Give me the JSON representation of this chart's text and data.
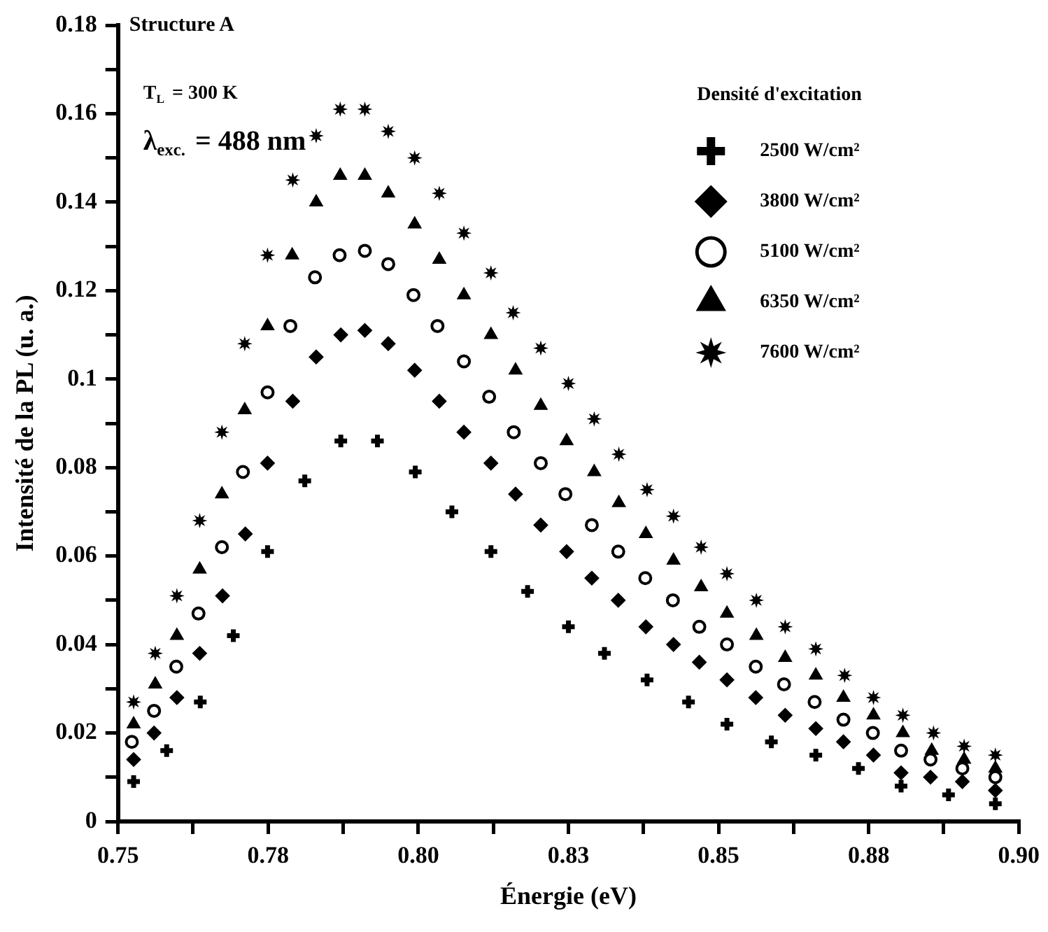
{
  "chart_data": {
    "type": "scatter",
    "xlabel": "Énergie (eV)",
    "ylabel": "Intensité de la PL (u. a.)",
    "legend_title": "Densité d'excitation",
    "legend": "top right",
    "grid": false,
    "annotations": [
      "Structure A",
      "T$_{L}$ = 300 K",
      "λ$_{exc.}$ = 488 nm"
    ],
    "xlim": [
      0.75,
      0.9
    ],
    "xticks": [
      0.75,
      {
        "value": 0.7625,
        "label": null
      },
      {
        "value": 0.775,
        "label": "0.78"
      },
      {
        "value": 0.7875,
        "label": null
      },
      {
        "value": 0.8,
        "label": "0.80"
      },
      {
        "value": 0.8125,
        "label": null
      },
      {
        "value": 0.825,
        "label": "0.83"
      },
      {
        "value": 0.8375,
        "label": null
      },
      {
        "value": 0.85,
        "label": "0.85"
      },
      {
        "value": 0.8625,
        "label": null
      },
      {
        "value": 0.875,
        "label": "0.88"
      },
      {
        "value": 0.8875,
        "label": null
      },
      {
        "value": 0.9,
        "label": "0.90"
      }
    ],
    "ylim": [
      0,
      0.18
    ],
    "yticks": [
      0,
      {
        "value": 0.01,
        "label": null
      },
      0.02,
      {
        "value": 0.03,
        "label": null
      },
      0.04,
      {
        "value": 0.05,
        "label": null
      },
      0.06,
      {
        "value": 0.07,
        "label": null
      },
      0.08,
      {
        "value": 0.09,
        "label": null
      },
      0.1,
      {
        "value": 0.11,
        "label": null
      },
      0.12,
      {
        "value": 0.13,
        "label": null
      },
      0.14,
      {
        "value": 0.15,
        "label": null
      },
      0.16,
      {
        "value": 0.17,
        "label": null
      },
      0.18
    ],
    "series": [
      {
        "name": "2500 W/cm²",
        "color": "#000000",
        "marker": "cross",
        "x": [
          0.7526,
          0.7581,
          0.7637,
          0.7692,
          0.7749,
          0.7811,
          0.7871,
          0.7932,
          0.7995,
          0.8056,
          0.8121,
          0.8182,
          0.825,
          0.831,
          0.8381,
          0.845,
          0.8514,
          0.8588,
          0.8662,
          0.8733,
          0.8804,
          0.8883,
          0.8961
        ],
        "values": [
          0.009,
          0.016,
          0.027,
          0.042,
          0.061,
          0.077,
          0.086,
          0.086,
          0.079,
          0.07,
          0.061,
          0.052,
          0.044,
          0.038,
          0.032,
          0.027,
          0.022,
          0.018,
          0.015,
          0.012,
          0.008,
          0.006,
          0.004
        ]
      },
      {
        "name": "3800 W/cm²",
        "color": "#000000",
        "marker": "diamond",
        "x": [
          0.7526,
          0.756,
          0.7598,
          0.7636,
          0.7674,
          0.7712,
          0.7749,
          0.7791,
          0.783,
          0.7871,
          0.7911,
          0.795,
          0.7994,
          0.8035,
          0.8076,
          0.8121,
          0.8162,
          0.8204,
          0.8247,
          0.8289,
          0.8333,
          0.8379,
          0.8425,
          0.8468,
          0.8514,
          0.8562,
          0.8611,
          0.8662,
          0.8708,
          0.8758,
          0.8804,
          0.8853,
          0.8906,
          0.8961
        ],
        "values": [
          0.014,
          0.02,
          0.028,
          0.038,
          0.051,
          0.065,
          0.081,
          0.095,
          0.105,
          0.11,
          0.111,
          0.108,
          0.102,
          0.095,
          0.088,
          0.081,
          0.074,
          0.067,
          0.061,
          0.055,
          0.05,
          0.044,
          0.04,
          0.036,
          0.032,
          0.028,
          0.024,
          0.021,
          0.018,
          0.015,
          0.011,
          0.01,
          0.009,
          0.007
        ]
      },
      {
        "name": "5100 W/cm²",
        "color": "#000000",
        "marker": "circle",
        "x": [
          0.7523,
          0.756,
          0.7597,
          0.7634,
          0.7673,
          0.7708,
          0.7749,
          0.7787,
          0.7828,
          0.7869,
          0.7911,
          0.795,
          0.7992,
          0.8032,
          0.8076,
          0.8118,
          0.8159,
          0.8204,
          0.8245,
          0.8289,
          0.8333,
          0.8378,
          0.8424,
          0.8468,
          0.8514,
          0.8562,
          0.8609,
          0.866,
          0.8708,
          0.8757,
          0.8804,
          0.8853,
          0.8906,
          0.8961
        ],
        "values": [
          0.018,
          0.025,
          0.035,
          0.047,
          0.062,
          0.079,
          0.097,
          0.112,
          0.123,
          0.128,
          0.129,
          0.126,
          0.119,
          0.112,
          0.104,
          0.096,
          0.088,
          0.081,
          0.074,
          0.067,
          0.061,
          0.055,
          0.05,
          0.044,
          0.04,
          0.035,
          0.031,
          0.027,
          0.023,
          0.02,
          0.016,
          0.014,
          0.012,
          0.01
        ]
      },
      {
        "name": "6350 W/cm²",
        "color": "#000000",
        "marker": "triangle",
        "x": [
          0.7526,
          0.7562,
          0.7598,
          0.7636,
          0.7673,
          0.7711,
          0.7749,
          0.779,
          0.783,
          0.787,
          0.7911,
          0.795,
          0.7994,
          0.8035,
          0.8076,
          0.8121,
          0.8162,
          0.8204,
          0.8247,
          0.8293,
          0.8334,
          0.8379,
          0.8425,
          0.8471,
          0.8514,
          0.8563,
          0.8611,
          0.8662,
          0.8708,
          0.8758,
          0.8807,
          0.8855,
          0.8909,
          0.8961
        ],
        "values": [
          0.022,
          0.031,
          0.042,
          0.057,
          0.074,
          0.093,
          0.112,
          0.128,
          0.14,
          0.146,
          0.146,
          0.142,
          0.135,
          0.127,
          0.119,
          0.11,
          0.102,
          0.094,
          0.086,
          0.079,
          0.072,
          0.065,
          0.059,
          0.053,
          0.047,
          0.042,
          0.037,
          0.033,
          0.028,
          0.024,
          0.02,
          0.016,
          0.014,
          0.012
        ]
      },
      {
        "name": "7600 W/cm²",
        "color": "#000000",
        "marker": "star",
        "x": [
          0.7526,
          0.7562,
          0.7598,
          0.7636,
          0.7673,
          0.7711,
          0.7749,
          0.7791,
          0.783,
          0.787,
          0.7911,
          0.795,
          0.7994,
          0.8035,
          0.8076,
          0.8121,
          0.8158,
          0.8204,
          0.825,
          0.8293,
          0.8334,
          0.8381,
          0.8425,
          0.8471,
          0.8514,
          0.8563,
          0.8611,
          0.8662,
          0.871,
          0.8758,
          0.8807,
          0.8858,
          0.8909,
          0.8961
        ],
        "values": [
          0.027,
          0.038,
          0.051,
          0.068,
          0.088,
          0.108,
          0.128,
          0.145,
          0.155,
          0.161,
          0.161,
          0.156,
          0.15,
          0.142,
          0.133,
          0.124,
          0.115,
          0.107,
          0.099,
          0.091,
          0.083,
          0.075,
          0.069,
          0.062,
          0.056,
          0.05,
          0.044,
          0.039,
          0.033,
          0.028,
          0.024,
          0.02,
          0.017,
          0.015
        ]
      }
    ]
  }
}
